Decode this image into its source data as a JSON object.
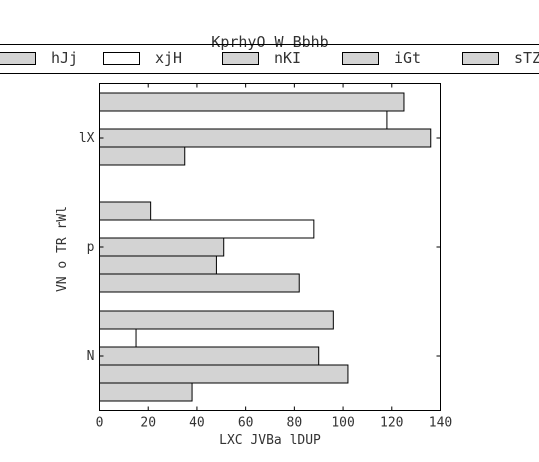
{
  "chart_data": {
    "type": "bar",
    "orientation": "horizontal",
    "title": "KprhyO W Bbhb",
    "xlabel": "LXC  JVBa lDUP",
    "ylabel": "VN o TR rWl",
    "categories": [
      "lX",
      "p",
      "N"
    ],
    "series": [
      {
        "name": "hJj",
        "color": "#d3d3d3",
        "values": [
          125,
          21,
          96
        ]
      },
      {
        "name": "xjH",
        "color": "#ffffff",
        "values": [
          118,
          88,
          15
        ]
      },
      {
        "name": "nKI",
        "color": "#d3d3d3",
        "values": [
          136,
          51,
          90
        ]
      },
      {
        "name": "iGt",
        "color": "#d3d3d3",
        "values": [
          35,
          48,
          102
        ]
      },
      {
        "name": "sTZ",
        "color": "#d3d3d3",
        "values": [
          null,
          82,
          38
        ]
      }
    ],
    "xlim": [
      0,
      140
    ],
    "xticks": [
      0,
      20,
      40,
      60,
      80,
      100,
      120,
      140
    ],
    "grid": false,
    "legend": "top"
  }
}
